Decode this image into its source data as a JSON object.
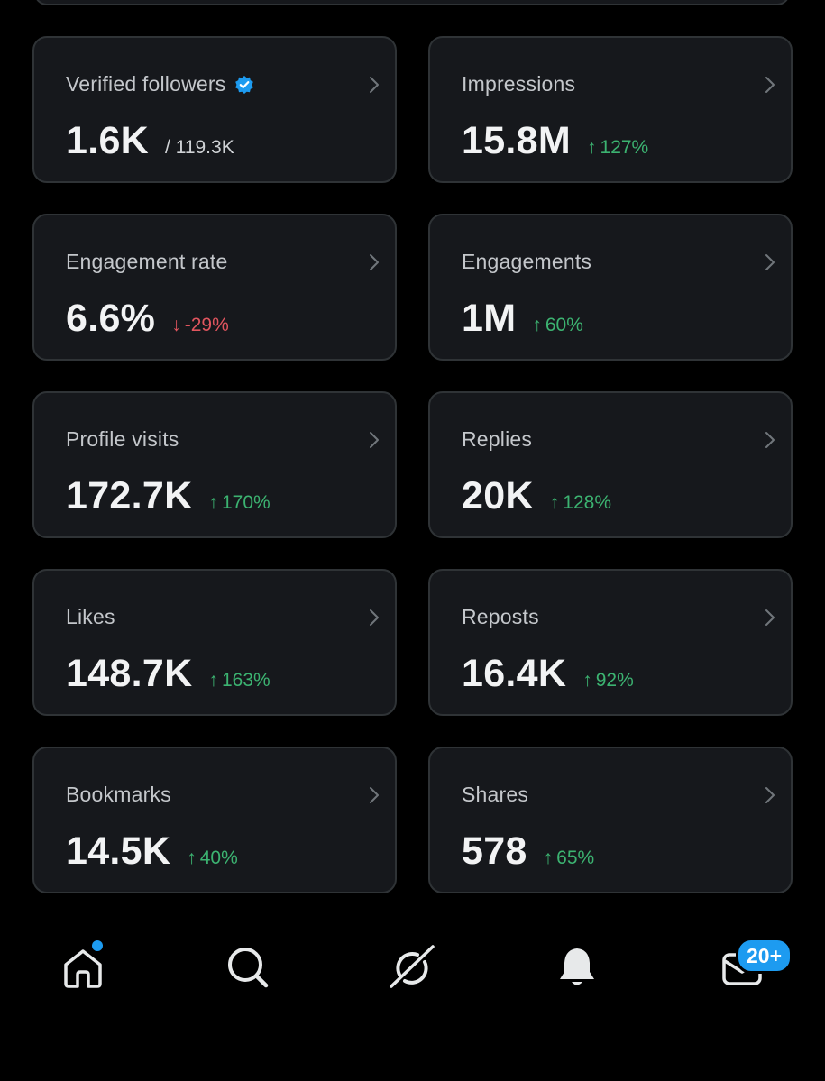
{
  "cards": [
    {
      "label": "Verified followers",
      "value": "1.6K",
      "sub": "/ 119.3K",
      "verified": true
    },
    {
      "label": "Impressions",
      "value": "15.8M",
      "delta": "127%",
      "direction": "up"
    },
    {
      "label": "Engagement rate",
      "value": "6.6%",
      "delta": "-29%",
      "direction": "down"
    },
    {
      "label": "Engagements",
      "value": "1M",
      "delta": "60%",
      "direction": "up"
    },
    {
      "label": "Profile visits",
      "value": "172.7K",
      "delta": "170%",
      "direction": "up"
    },
    {
      "label": "Replies",
      "value": "20K",
      "delta": "128%",
      "direction": "up"
    },
    {
      "label": "Likes",
      "value": "148.7K",
      "delta": "163%",
      "direction": "up"
    },
    {
      "label": "Reposts",
      "value": "16.4K",
      "delta": "92%",
      "direction": "up"
    },
    {
      "label": "Bookmarks",
      "value": "14.5K",
      "delta": "40%",
      "direction": "up"
    },
    {
      "label": "Shares",
      "value": "578",
      "delta": "65%",
      "direction": "up"
    }
  ],
  "icons": {
    "verified": "verified-badge-icon",
    "chevron": "chevron-right-icon",
    "up": "arrow-up-icon",
    "down": "arrow-down-icon"
  },
  "tabbar": {
    "items": [
      {
        "name": "home",
        "icon": "home-icon",
        "has_dot": true
      },
      {
        "name": "search",
        "icon": "search-icon"
      },
      {
        "name": "grok",
        "icon": "grok-icon"
      },
      {
        "name": "notifications",
        "icon": "bell-icon"
      },
      {
        "name": "messages",
        "icon": "envelope-icon"
      }
    ],
    "messages_badge": "20+"
  },
  "colors": {
    "background": "#000000",
    "card": "#16181c",
    "border": "#2f3336",
    "up": "#3cb371",
    "down": "#e0555e",
    "accent": "#1d9bf0"
  }
}
